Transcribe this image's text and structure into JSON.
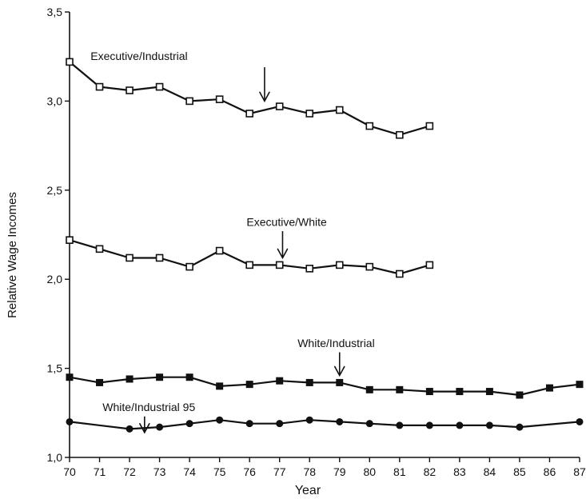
{
  "chart_data": {
    "type": "line",
    "xlabel": "Year",
    "ylabel": "Relative Wage Incomes",
    "xlim": [
      70,
      87
    ],
    "ylim": [
      1.0,
      3.5
    ],
    "x_ticks": [
      "70",
      "71",
      "72",
      "73",
      "74",
      "75",
      "76",
      "77",
      "78",
      "79",
      "80",
      "81",
      "82",
      "83",
      "84",
      "85",
      "86",
      "87"
    ],
    "y_ticks": [
      {
        "value": 1.0,
        "label": "1,0"
      },
      {
        "value": 1.5,
        "label": "1,5"
      },
      {
        "value": 2.0,
        "label": "2,0"
      },
      {
        "value": 2.5,
        "label": "2,5"
      },
      {
        "value": 3.0,
        "label": "3,0"
      },
      {
        "value": 3.5,
        "label": "3,5"
      }
    ],
    "grid": false,
    "series": [
      {
        "name": "Executive/Industrial",
        "marker": "open-square",
        "x": [
          70,
          71,
          72,
          73,
          74,
          75,
          76,
          77,
          78,
          79,
          80,
          81,
          82
        ],
        "values": [
          3.22,
          3.08,
          3.06,
          3.08,
          3.0,
          3.01,
          2.93,
          2.97,
          2.93,
          2.95,
          2.86,
          2.81,
          2.86
        ]
      },
      {
        "name": "Executive/White",
        "marker": "open-square",
        "x": [
          70,
          71,
          72,
          73,
          74,
          75,
          76,
          77,
          78,
          79,
          80,
          81,
          82
        ],
        "values": [
          2.22,
          2.17,
          2.12,
          2.12,
          2.07,
          2.16,
          2.08,
          2.08,
          2.06,
          2.08,
          2.07,
          2.03,
          2.08
        ]
      },
      {
        "name": "White/Industrial",
        "marker": "filled-square",
        "x": [
          70,
          71,
          72,
          73,
          74,
          75,
          76,
          77,
          78,
          79,
          80,
          81,
          82,
          83,
          84,
          85,
          86,
          87
        ],
        "values": [
          1.45,
          1.42,
          1.44,
          1.45,
          1.45,
          1.4,
          1.41,
          1.43,
          1.42,
          1.42,
          1.38,
          1.38,
          1.37,
          1.37,
          1.37,
          1.35,
          1.39,
          1.41
        ]
      },
      {
        "name": "White/Industrial 95",
        "marker": "filled-circle",
        "x": [
          70,
          72,
          73,
          74,
          75,
          76,
          77,
          78,
          79,
          80,
          81,
          82,
          83,
          84,
          85,
          87
        ],
        "values": [
          1.2,
          1.16,
          1.17,
          1.19,
          1.21,
          1.19,
          1.19,
          1.21,
          1.2,
          1.19,
          1.18,
          1.18,
          1.18,
          1.18,
          1.17,
          1.2
        ]
      }
    ],
    "annotations": [
      {
        "text": "Executive/Industrial",
        "text_x": 70.7,
        "text_y": 3.23,
        "arrow_x": 76.5,
        "arrow_from": 3.19,
        "arrow_to": 3.0
      },
      {
        "text": "Executive/White",
        "text_x": 75.9,
        "text_y": 2.3,
        "arrow_x": 77.1,
        "arrow_from": 2.27,
        "arrow_to": 2.12
      },
      {
        "text": "White/Industrial",
        "text_x": 77.6,
        "text_y": 1.62,
        "arrow_x": 79.0,
        "arrow_from": 1.59,
        "arrow_to": 1.46
      },
      {
        "text": "White/Industrial 95",
        "text_x": 71.1,
        "text_y": 1.26,
        "arrow_x": 72.5,
        "arrow_from": 1.23,
        "arrow_to": 1.14
      }
    ]
  }
}
